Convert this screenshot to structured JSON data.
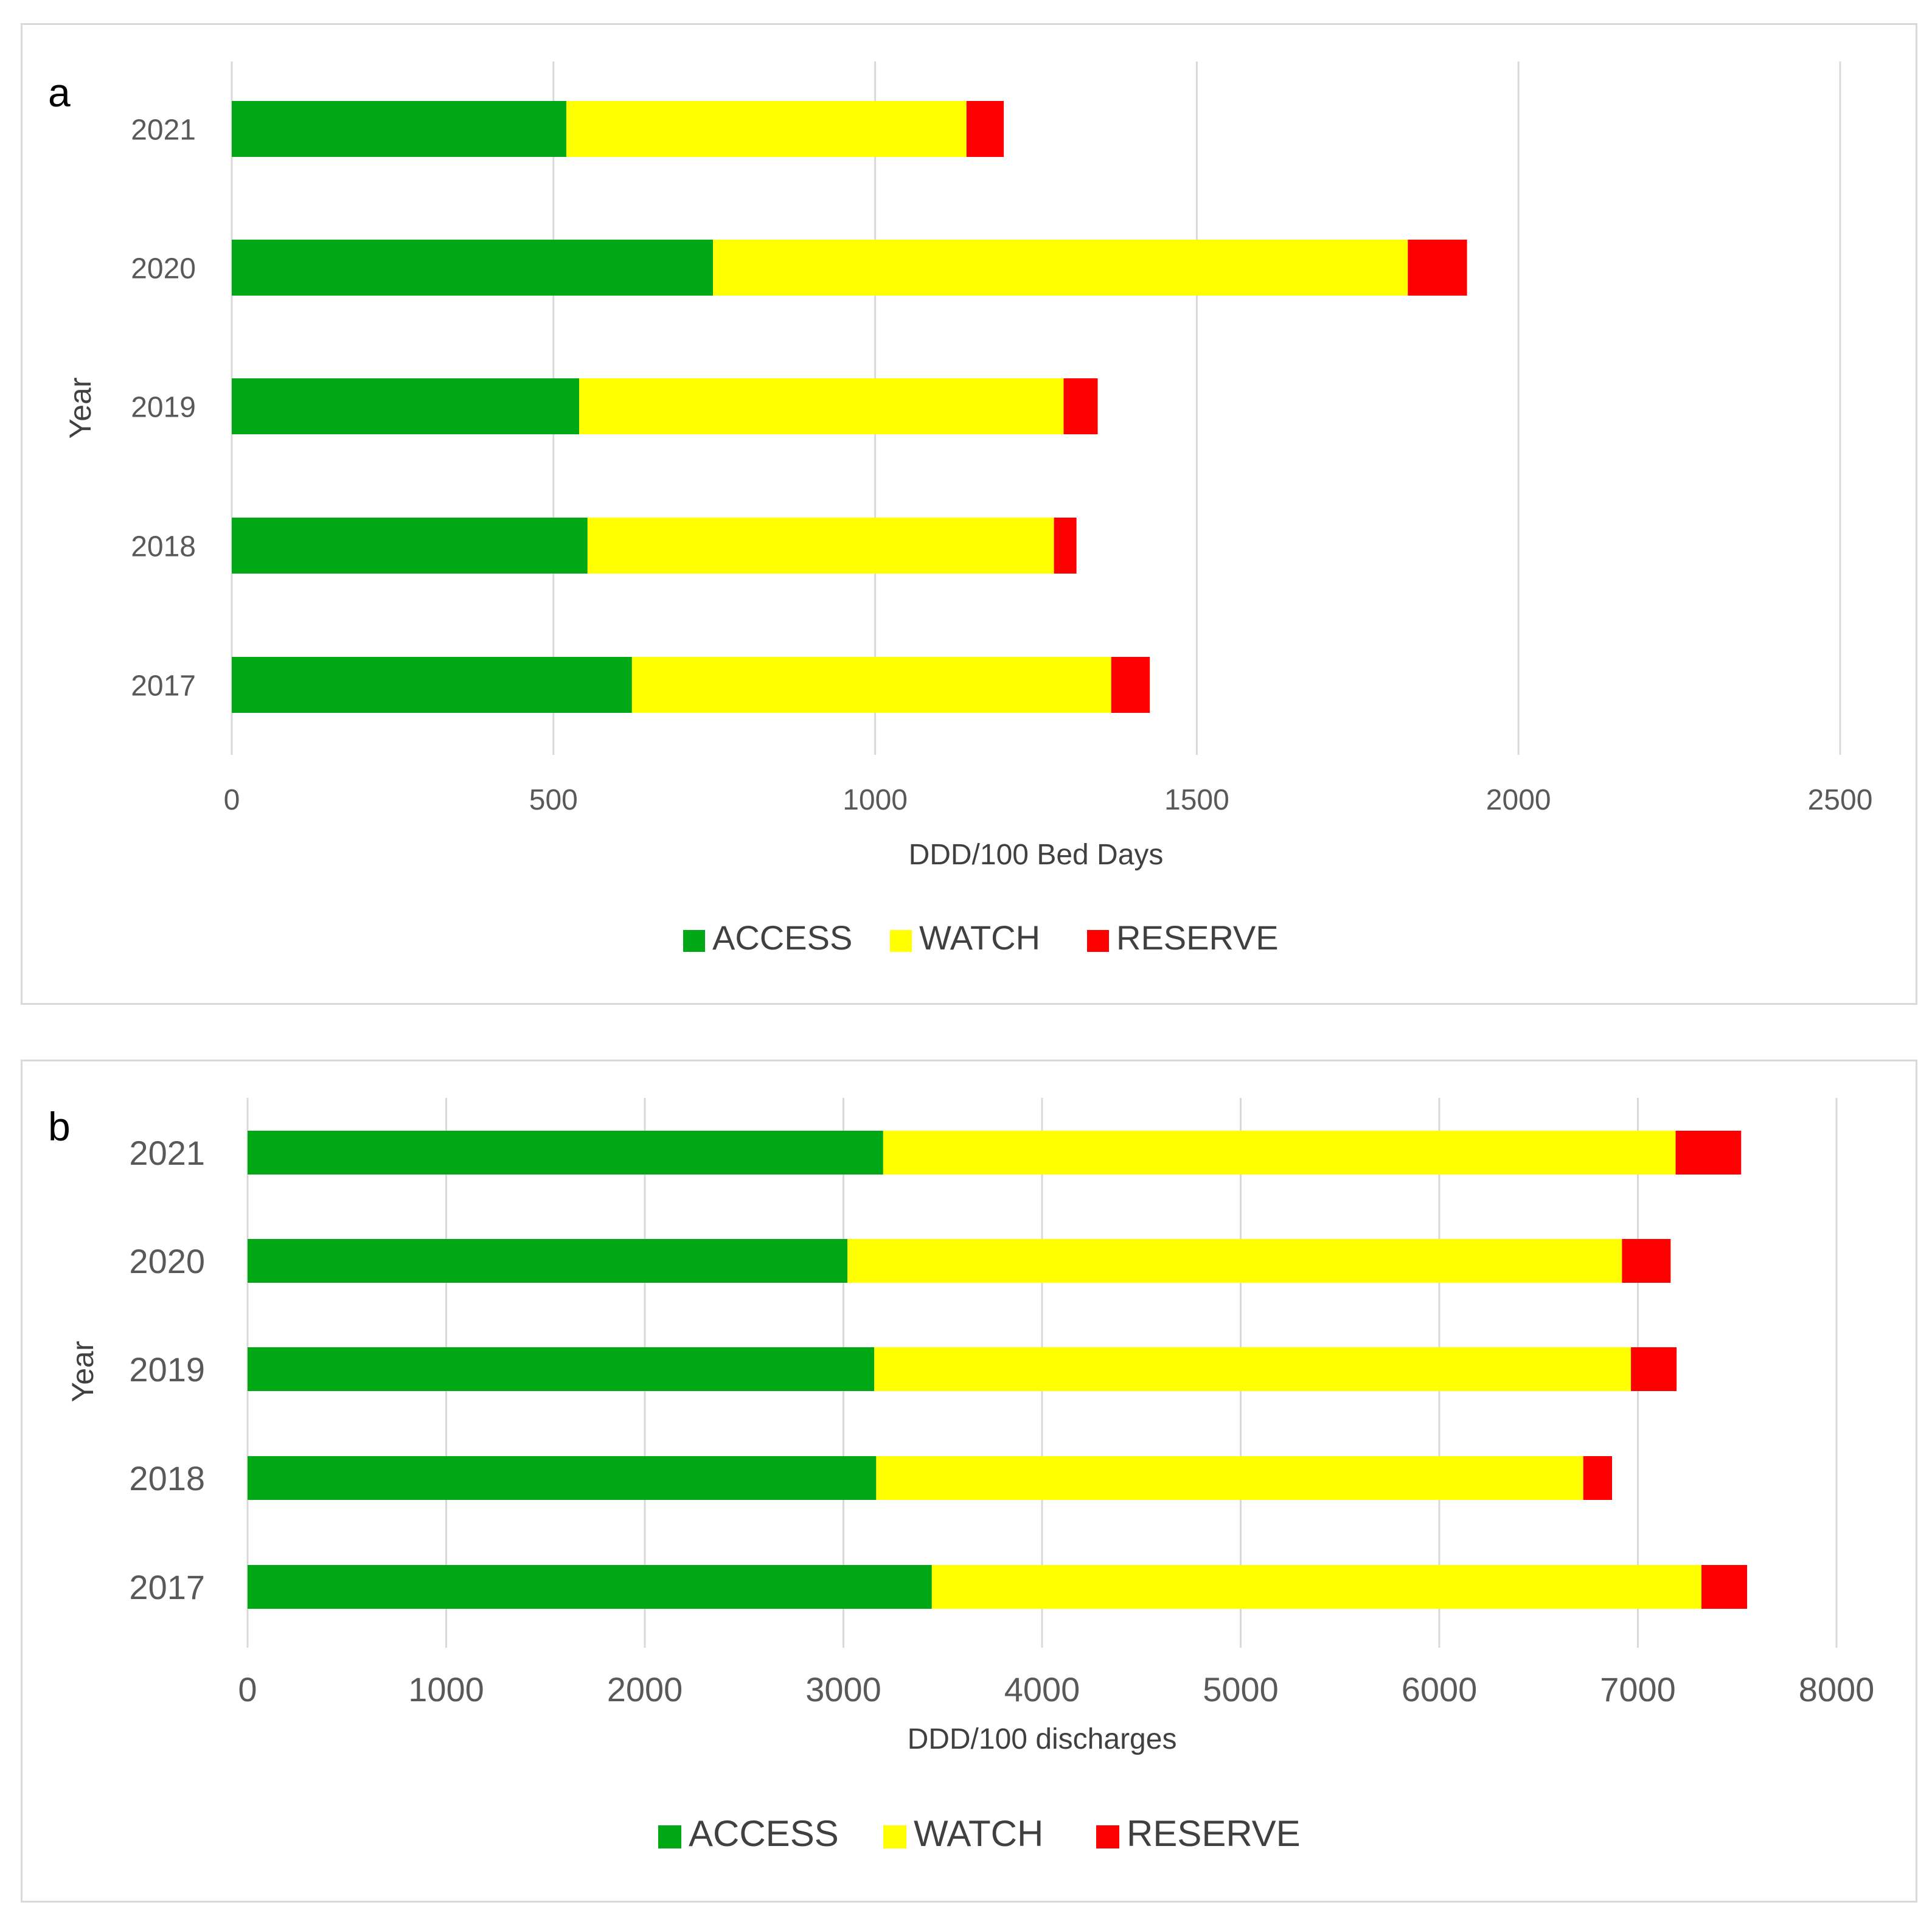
{
  "chart_data": [
    {
      "type": "bar",
      "orientation": "horizontal",
      "stacked": true,
      "panel_label": "a",
      "categories": [
        "2021",
        "2020",
        "2019",
        "2018",
        "2017"
      ],
      "series": [
        {
          "name": "ACCESS",
          "color": "#00a815",
          "values": [
            520,
            748,
            540,
            553,
            622
          ]
        },
        {
          "name": "WATCH",
          "color": "#ffff00",
          "values": [
            622,
            1080,
            753,
            725,
            745
          ]
        },
        {
          "name": "RESERVE",
          "color": "#ff0000",
          "values": [
            58,
            92,
            53,
            35,
            60
          ]
        }
      ],
      "xlabel": "DDD/100 Bed Days",
      "ylabel": "Year",
      "xlim": [
        0,
        2500
      ],
      "xticks": [
        "0",
        "500",
        "1000",
        "1500",
        "2000",
        "2500"
      ],
      "grid": "vertical",
      "legend": "bottom"
    },
    {
      "type": "bar",
      "orientation": "horizontal",
      "stacked": true,
      "panel_label": "b",
      "categories": [
        "2021",
        "2020",
        "2019",
        "2018",
        "2017"
      ],
      "series": [
        {
          "name": "ACCESS",
          "color": "#00a815",
          "values": [
            3200,
            3020,
            3155,
            3165,
            3445
          ]
        },
        {
          "name": "WATCH",
          "color": "#ffff00",
          "values": [
            3990,
            3900,
            3810,
            3560,
            3875
          ]
        },
        {
          "name": "RESERVE",
          "color": "#ff0000",
          "values": [
            330,
            245,
            230,
            145,
            230
          ]
        }
      ],
      "xlabel": "DDD/100 discharges",
      "ylabel": "Year",
      "xlim": [
        0,
        8000
      ],
      "xticks": [
        "0",
        "1000",
        "2000",
        "3000",
        "4000",
        "5000",
        "6000",
        "7000",
        "8000"
      ],
      "grid": "vertical",
      "legend": "bottom"
    }
  ]
}
